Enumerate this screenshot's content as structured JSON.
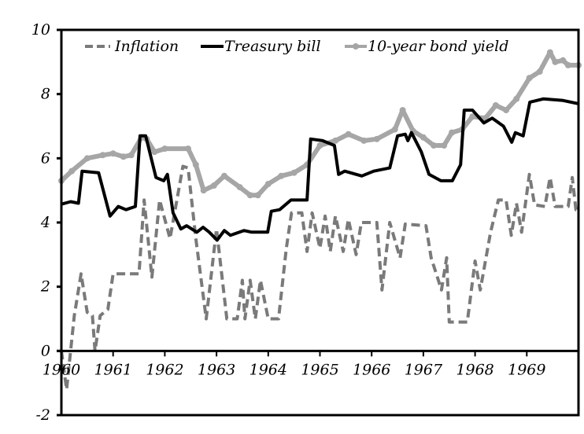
{
  "chart_data": {
    "type": "line",
    "title": "",
    "xlabel": "",
    "ylabel": "",
    "xlim": [
      1960,
      1970
    ],
    "ylim": [
      -2,
      10
    ],
    "x_ticks": [
      "1960",
      "1961",
      "1962",
      "1963",
      "1964",
      "1965",
      "1966",
      "1967",
      "1968",
      "1969"
    ],
    "y_ticks": [
      "-2",
      "0",
      "2",
      "4",
      "6",
      "8",
      "10"
    ],
    "legend_position": "top",
    "grid": false,
    "series": [
      {
        "name": "Inflation",
        "style": "dashed",
        "color": "#7a7a7a",
        "points": [
          [
            1960.0,
            0
          ],
          [
            1960.1,
            -1.2
          ],
          [
            1960.25,
            1.1
          ],
          [
            1960.38,
            2.4
          ],
          [
            1960.5,
            1.2
          ],
          [
            1960.6,
            1.1
          ],
          [
            1960.65,
            0
          ],
          [
            1960.75,
            1.1
          ],
          [
            1960.9,
            1.3
          ],
          [
            1961.0,
            2.4
          ],
          [
            1961.5,
            2.4
          ],
          [
            1961.6,
            4.7
          ],
          [
            1961.75,
            2.3
          ],
          [
            1961.9,
            4.7
          ],
          [
            1962.1,
            3.5
          ],
          [
            1962.35,
            5.75
          ],
          [
            1962.45,
            5.7
          ],
          [
            1962.6,
            3.5
          ],
          [
            1962.8,
            1.0
          ],
          [
            1963.0,
            3.8
          ],
          [
            1963.2,
            1.0
          ],
          [
            1963.4,
            1.0
          ],
          [
            1963.5,
            2.2
          ],
          [
            1963.55,
            1.0
          ],
          [
            1963.65,
            2.2
          ],
          [
            1963.75,
            1.0
          ],
          [
            1963.85,
            2.2
          ],
          [
            1964.0,
            1.0
          ],
          [
            1964.2,
            1.0
          ],
          [
            1964.35,
            3.2
          ],
          [
            1964.45,
            4.3
          ],
          [
            1964.65,
            4.3
          ],
          [
            1964.75,
            3.1
          ],
          [
            1964.85,
            4.3
          ],
          [
            1965.0,
            3.2
          ],
          [
            1965.1,
            4.2
          ],
          [
            1965.2,
            3.1
          ],
          [
            1965.3,
            4.2
          ],
          [
            1965.45,
            3.1
          ],
          [
            1965.55,
            4.1
          ],
          [
            1965.7,
            3.0
          ],
          [
            1965.8,
            4.0
          ],
          [
            1966.1,
            4.0
          ],
          [
            1966.2,
            1.9
          ],
          [
            1966.35,
            4.0
          ],
          [
            1966.55,
            2.9
          ],
          [
            1966.65,
            3.95
          ],
          [
            1967.05,
            3.9
          ],
          [
            1967.15,
            2.9
          ],
          [
            1967.35,
            1.9
          ],
          [
            1967.45,
            2.9
          ],
          [
            1967.5,
            0.9
          ],
          [
            1967.85,
            0.9
          ],
          [
            1968.0,
            2.8
          ],
          [
            1968.1,
            1.9
          ],
          [
            1968.3,
            3.7
          ],
          [
            1968.45,
            4.7
          ],
          [
            1968.6,
            4.7
          ],
          [
            1968.7,
            3.6
          ],
          [
            1968.8,
            4.6
          ],
          [
            1968.9,
            3.7
          ],
          [
            1969.05,
            5.5
          ],
          [
            1969.15,
            4.55
          ],
          [
            1969.35,
            4.5
          ],
          [
            1969.45,
            5.4
          ],
          [
            1969.55,
            4.5
          ],
          [
            1969.8,
            4.5
          ],
          [
            1969.88,
            5.4
          ],
          [
            1969.95,
            4.4
          ],
          [
            1970.0,
            4.4
          ]
        ]
      },
      {
        "name": "Treasury bill",
        "style": "solid",
        "color": "#000000",
        "points": [
          [
            1960.0,
            4.57
          ],
          [
            1960.18,
            4.65
          ],
          [
            1960.33,
            4.6
          ],
          [
            1960.4,
            5.6
          ],
          [
            1960.72,
            5.55
          ],
          [
            1960.94,
            4.2
          ],
          [
            1961.1,
            4.5
          ],
          [
            1961.25,
            4.4
          ],
          [
            1961.43,
            4.5
          ],
          [
            1961.52,
            6.7
          ],
          [
            1961.63,
            6.7
          ],
          [
            1961.83,
            5.4
          ],
          [
            1961.98,
            5.3
          ],
          [
            1962.05,
            5.5
          ],
          [
            1962.16,
            4.3
          ],
          [
            1962.31,
            3.8
          ],
          [
            1962.42,
            3.9
          ],
          [
            1962.62,
            3.7
          ],
          [
            1962.74,
            3.85
          ],
          [
            1962.86,
            3.7
          ],
          [
            1963.01,
            3.45
          ],
          [
            1963.15,
            3.75
          ],
          [
            1963.27,
            3.6
          ],
          [
            1963.53,
            3.75
          ],
          [
            1963.68,
            3.7
          ],
          [
            1963.99,
            3.7
          ],
          [
            1964.06,
            4.35
          ],
          [
            1964.22,
            4.4
          ],
          [
            1964.44,
            4.7
          ],
          [
            1964.75,
            4.7
          ],
          [
            1964.82,
            6.6
          ],
          [
            1965.05,
            6.55
          ],
          [
            1965.28,
            6.4
          ],
          [
            1965.36,
            5.5
          ],
          [
            1965.48,
            5.6
          ],
          [
            1965.81,
            5.45
          ],
          [
            1966.04,
            5.6
          ],
          [
            1966.35,
            5.7
          ],
          [
            1966.5,
            6.7
          ],
          [
            1966.65,
            6.75
          ],
          [
            1966.7,
            6.55
          ],
          [
            1966.77,
            6.8
          ],
          [
            1966.96,
            6.2
          ],
          [
            1967.11,
            5.5
          ],
          [
            1967.34,
            5.3
          ],
          [
            1967.56,
            5.3
          ],
          [
            1967.72,
            5.8
          ],
          [
            1967.79,
            7.5
          ],
          [
            1967.95,
            7.5
          ],
          [
            1968.17,
            7.1
          ],
          [
            1968.33,
            7.25
          ],
          [
            1968.55,
            7.0
          ],
          [
            1968.71,
            6.5
          ],
          [
            1968.78,
            6.8
          ],
          [
            1968.93,
            6.7
          ],
          [
            1969.06,
            7.75
          ],
          [
            1969.32,
            7.85
          ],
          [
            1969.7,
            7.8
          ],
          [
            1970.0,
            7.7
          ]
        ]
      },
      {
        "name": "10-year bond yield",
        "style": "solid-marker",
        "color": "#a6a6a6",
        "points": [
          [
            1960.0,
            5.3
          ],
          [
            1960.2,
            5.6
          ],
          [
            1960.5,
            6.0
          ],
          [
            1960.8,
            6.1
          ],
          [
            1961.0,
            6.15
          ],
          [
            1961.2,
            6.05
          ],
          [
            1961.35,
            6.1
          ],
          [
            1961.55,
            6.65
          ],
          [
            1961.65,
            6.6
          ],
          [
            1961.8,
            6.2
          ],
          [
            1962.0,
            6.3
          ],
          [
            1962.45,
            6.3
          ],
          [
            1962.6,
            5.8
          ],
          [
            1962.75,
            5.0
          ],
          [
            1962.95,
            5.15
          ],
          [
            1963.15,
            5.45
          ],
          [
            1963.45,
            5.1
          ],
          [
            1963.65,
            4.85
          ],
          [
            1963.8,
            4.85
          ],
          [
            1964.0,
            5.2
          ],
          [
            1964.25,
            5.45
          ],
          [
            1964.5,
            5.55
          ],
          [
            1964.75,
            5.8
          ],
          [
            1965.0,
            6.4
          ],
          [
            1965.3,
            6.55
          ],
          [
            1965.55,
            6.75
          ],
          [
            1965.85,
            6.55
          ],
          [
            1966.1,
            6.6
          ],
          [
            1966.45,
            6.9
          ],
          [
            1966.6,
            7.5
          ],
          [
            1966.8,
            6.85
          ],
          [
            1967.0,
            6.65
          ],
          [
            1967.2,
            6.4
          ],
          [
            1967.4,
            6.4
          ],
          [
            1967.55,
            6.8
          ],
          [
            1967.75,
            6.9
          ],
          [
            1967.95,
            7.3
          ],
          [
            1968.2,
            7.25
          ],
          [
            1968.4,
            7.65
          ],
          [
            1968.6,
            7.5
          ],
          [
            1968.8,
            7.85
          ],
          [
            1969.05,
            8.5
          ],
          [
            1969.25,
            8.7
          ],
          [
            1969.45,
            9.3
          ],
          [
            1969.55,
            9.0
          ],
          [
            1969.7,
            9.05
          ],
          [
            1969.8,
            8.9
          ],
          [
            1970.0,
            8.9
          ]
        ]
      }
    ]
  }
}
